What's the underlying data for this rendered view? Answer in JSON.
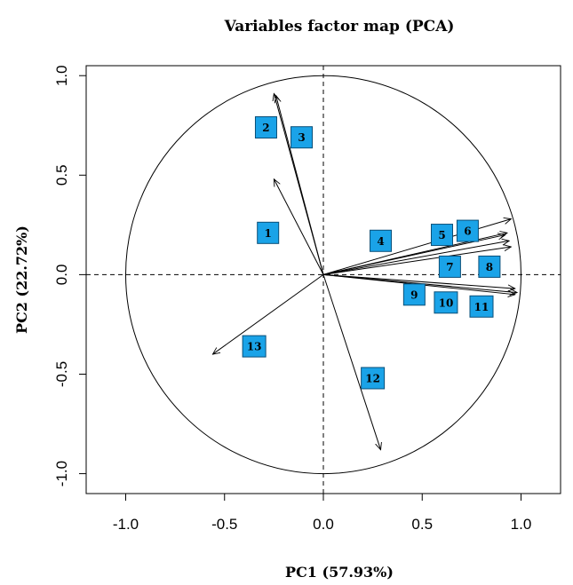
{
  "chart_data": {
    "type": "scatter",
    "title": "Variables factor map (PCA)",
    "xlabel": "PC1 (57.93%)",
    "ylabel": "PC2 (22.72%)",
    "xlim": [
      -1.2,
      1.2
    ],
    "ylim": [
      -1.1,
      1.05
    ],
    "xticks": [
      -1.0,
      -0.5,
      0.0,
      0.5,
      1.0
    ],
    "xtick_labels": [
      "-1.0",
      "-0.5",
      "0.0",
      "0.5",
      "1.0"
    ],
    "yticks": [
      -1.0,
      -0.5,
      0.0,
      0.5,
      1.0
    ],
    "ytick_labels": [
      "-1.0",
      "-0.5",
      "0.0",
      "0.5",
      "1.0"
    ],
    "unit_circle": true,
    "label_color": "#1aa3e8",
    "variables": [
      {
        "label": "1",
        "x": -0.25,
        "y": 0.48,
        "label_x": -0.28,
        "label_y": 0.21
      },
      {
        "label": "2",
        "x": -0.25,
        "y": 0.91,
        "label_x": -0.29,
        "label_y": 0.74
      },
      {
        "label": "3",
        "x": -0.24,
        "y": 0.9,
        "label_x": -0.11,
        "label_y": 0.69
      },
      {
        "label": "4",
        "x": 0.92,
        "y": 0.2,
        "label_x": 0.29,
        "label_y": 0.17
      },
      {
        "label": "5",
        "x": 0.93,
        "y": 0.21,
        "label_x": 0.6,
        "label_y": 0.2
      },
      {
        "label": "6",
        "x": 0.95,
        "y": 0.28,
        "label_x": 0.73,
        "label_y": 0.22
      },
      {
        "label": "7",
        "x": 0.94,
        "y": 0.17,
        "label_x": 0.64,
        "label_y": 0.04
      },
      {
        "label": "8",
        "x": 0.95,
        "y": 0.14,
        "label_x": 0.84,
        "label_y": 0.04
      },
      {
        "label": "9",
        "x": 0.97,
        "y": -0.07,
        "label_x": 0.46,
        "label_y": -0.1
      },
      {
        "label": "10",
        "x": 0.98,
        "y": -0.09,
        "label_x": 0.62,
        "label_y": -0.14
      },
      {
        "label": "11",
        "x": 0.97,
        "y": -0.1,
        "label_x": 0.8,
        "label_y": -0.16
      },
      {
        "label": "12",
        "x": 0.29,
        "y": -0.88,
        "label_x": 0.25,
        "label_y": -0.52
      },
      {
        "label": "13",
        "x": -0.56,
        "y": -0.4,
        "label_x": -0.35,
        "label_y": -0.36
      }
    ]
  }
}
